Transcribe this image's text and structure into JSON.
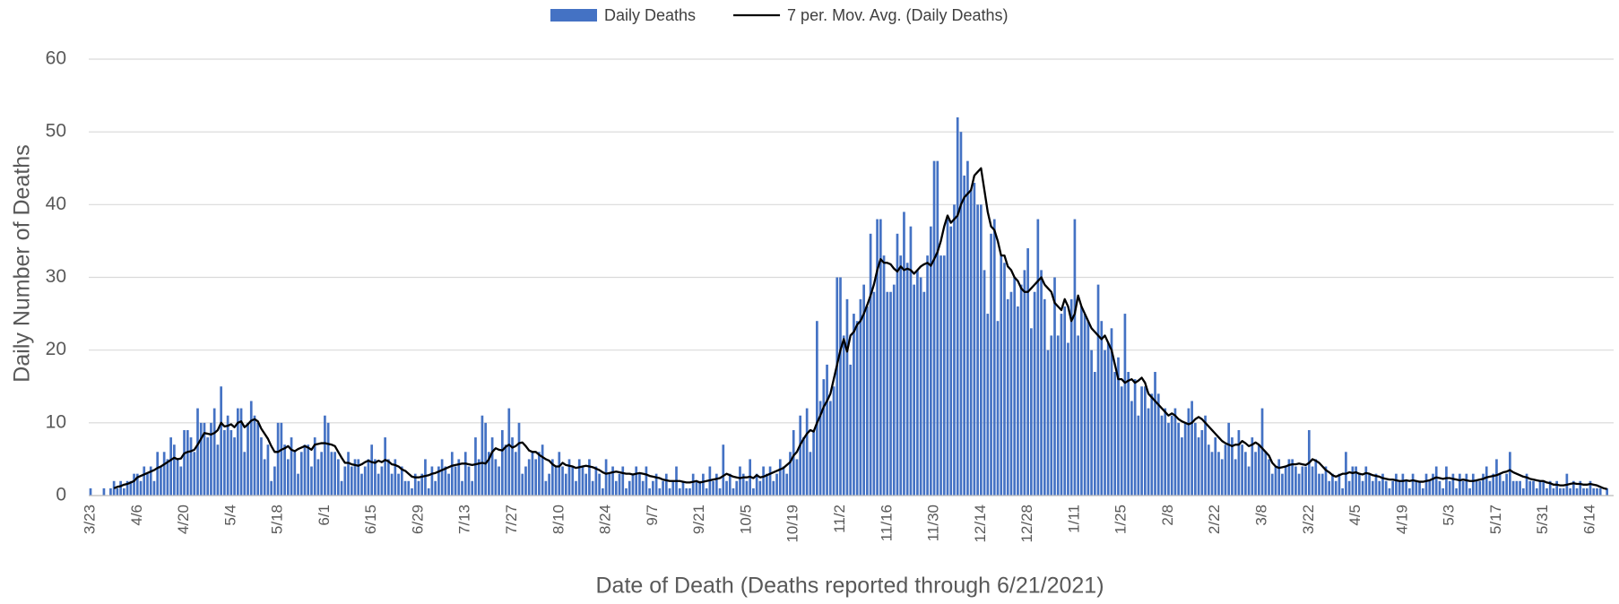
{
  "chart_data": {
    "type": "bar",
    "legend": "top",
    "grid": true,
    "y_axis_label": "Daily Number of Deaths",
    "x_axis_label": "Date of Death (Deaths reported through 6/21/2021)",
    "ylim": [
      0,
      60
    ],
    "yticks": [
      0,
      10,
      20,
      30,
      40,
      50,
      60
    ],
    "categories": [
      "3/23",
      null,
      null,
      null,
      null,
      null,
      null,
      null,
      null,
      null,
      null,
      null,
      null,
      null,
      "4/6",
      null,
      null,
      null,
      null,
      null,
      null,
      null,
      null,
      null,
      null,
      null,
      null,
      null,
      "4/20",
      null,
      null,
      null,
      null,
      null,
      null,
      null,
      null,
      null,
      null,
      null,
      null,
      null,
      "5/4",
      null,
      null,
      null,
      null,
      null,
      null,
      null,
      null,
      null,
      null,
      null,
      null,
      null,
      "5/18",
      null,
      null,
      null,
      null,
      null,
      null,
      null,
      null,
      null,
      null,
      null,
      null,
      null,
      "6/1",
      null,
      null,
      null,
      null,
      null,
      null,
      null,
      null,
      null,
      null,
      null,
      null,
      null,
      "6/15",
      null,
      null,
      null,
      null,
      null,
      null,
      null,
      null,
      null,
      null,
      null,
      null,
      null,
      "6/29",
      null,
      null,
      null,
      null,
      null,
      null,
      null,
      null,
      null,
      null,
      null,
      null,
      null,
      "7/13",
      null,
      null,
      null,
      null,
      null,
      null,
      null,
      null,
      null,
      null,
      null,
      null,
      null,
      "7/27",
      null,
      null,
      null,
      null,
      null,
      null,
      null,
      null,
      null,
      null,
      null,
      null,
      null,
      "8/10",
      null,
      null,
      null,
      null,
      null,
      null,
      null,
      null,
      null,
      null,
      null,
      null,
      null,
      "8/24",
      null,
      null,
      null,
      null,
      null,
      null,
      null,
      null,
      null,
      null,
      null,
      null,
      null,
      "9/7",
      null,
      null,
      null,
      null,
      null,
      null,
      null,
      null,
      null,
      null,
      null,
      null,
      null,
      "9/21",
      null,
      null,
      null,
      null,
      null,
      null,
      null,
      null,
      null,
      null,
      null,
      null,
      null,
      "10/5",
      null,
      null,
      null,
      null,
      null,
      null,
      null,
      null,
      null,
      null,
      null,
      null,
      null,
      "10/19",
      null,
      null,
      null,
      null,
      null,
      null,
      null,
      null,
      null,
      null,
      null,
      null,
      null,
      "11/2",
      null,
      null,
      null,
      null,
      null,
      null,
      null,
      null,
      null,
      null,
      null,
      null,
      null,
      "11/16",
      null,
      null,
      null,
      null,
      null,
      null,
      null,
      null,
      null,
      null,
      null,
      null,
      null,
      "11/30",
      null,
      null,
      null,
      null,
      null,
      null,
      null,
      null,
      null,
      null,
      null,
      null,
      null,
      "12/14",
      null,
      null,
      null,
      null,
      null,
      null,
      null,
      null,
      null,
      null,
      null,
      null,
      null,
      "12/28",
      null,
      null,
      null,
      null,
      null,
      null,
      null,
      null,
      null,
      null,
      null,
      null,
      null,
      "1/11",
      null,
      null,
      null,
      null,
      null,
      null,
      null,
      null,
      null,
      null,
      null,
      null,
      null,
      "1/25",
      null,
      null,
      null,
      null,
      null,
      null,
      null,
      null,
      null,
      null,
      null,
      null,
      null,
      "2/8",
      null,
      null,
      null,
      null,
      null,
      null,
      null,
      null,
      null,
      null,
      null,
      null,
      null,
      "2/22",
      null,
      null,
      null,
      null,
      null,
      null,
      null,
      null,
      null,
      null,
      null,
      null,
      null,
      "3/8",
      null,
      null,
      null,
      null,
      null,
      null,
      null,
      null,
      null,
      null,
      null,
      null,
      null,
      "3/22",
      null,
      null,
      null,
      null,
      null,
      null,
      null,
      null,
      null,
      null,
      null,
      null,
      null,
      "4/5",
      null,
      null,
      null,
      null,
      null,
      null,
      null,
      null,
      null,
      null,
      null,
      null,
      null,
      "4/19",
      null,
      null,
      null,
      null,
      null,
      null,
      null,
      null,
      null,
      null,
      null,
      null,
      null,
      "5/3",
      null,
      null,
      null,
      null,
      null,
      null,
      null,
      null,
      null,
      null,
      null,
      null,
      null,
      "5/17",
      null,
      null,
      null,
      null,
      null,
      null,
      null,
      null,
      null,
      null,
      null,
      null,
      null,
      "5/31",
      null,
      null,
      null,
      null,
      null,
      null,
      null,
      null,
      null,
      null,
      null,
      null,
      null,
      "6/14",
      null,
      null,
      null,
      null,
      null
    ],
    "series": [
      {
        "name": "Daily Deaths",
        "color": "#4472c4",
        "values": [
          1,
          0,
          0,
          0,
          1,
          0,
          1,
          2,
          1,
          2,
          1,
          2,
          2,
          3,
          3,
          2,
          4,
          3,
          4,
          2,
          6,
          4,
          6,
          5,
          8,
          7,
          5,
          4,
          9,
          9,
          8,
          6,
          12,
          10,
          10,
          8,
          10,
          12,
          7,
          15,
          9,
          11,
          9,
          8,
          12,
          12,
          6,
          10,
          13,
          11,
          10,
          8,
          5,
          7,
          2,
          4,
          10,
          10,
          7,
          5,
          8,
          6,
          3,
          6,
          7,
          7,
          4,
          8,
          5,
          6,
          11,
          10,
          6,
          6,
          5,
          2,
          4,
          6,
          4,
          5,
          5,
          3,
          4,
          5,
          7,
          5,
          3,
          4,
          8,
          5,
          3,
          5,
          3,
          4,
          2,
          2,
          1,
          3,
          2,
          3,
          5,
          1,
          4,
          2,
          4,
          5,
          4,
          3,
          6,
          4,
          5,
          2,
          6,
          4,
          2,
          8,
          5,
          11,
          10,
          6,
          8,
          5,
          4,
          9,
          7,
          12,
          8,
          6,
          10,
          3,
          4,
          5,
          6,
          5,
          6,
          7,
          2,
          3,
          5,
          4,
          6,
          4,
          3,
          5,
          4,
          2,
          5,
          4,
          3,
          5,
          2,
          4,
          3,
          1,
          5,
          3,
          4,
          2,
          3,
          4,
          1,
          2,
          3,
          4,
          3,
          2,
          4,
          1,
          2,
          3,
          1,
          2,
          3,
          1,
          2,
          4,
          1,
          2,
          1,
          1,
          3,
          2,
          2,
          3,
          1,
          4,
          2,
          3,
          1,
          7,
          2,
          3,
          1,
          2,
          4,
          3,
          2,
          5,
          1,
          3,
          2,
          4,
          3,
          4,
          2,
          3,
          5,
          4,
          3,
          6,
          9,
          5,
          11,
          8,
          12,
          6,
          9,
          24,
          13,
          16,
          18,
          13,
          15,
          30,
          30,
          22,
          27,
          18,
          25,
          24,
          27,
          29,
          26,
          36,
          28,
          38,
          38,
          33,
          28,
          28,
          29,
          36,
          33,
          39,
          32,
          37,
          29,
          31,
          30,
          28,
          33,
          37,
          46,
          46,
          33,
          33,
          38,
          37,
          40,
          52,
          50,
          44,
          46,
          42,
          43,
          40,
          40,
          31,
          25,
          36,
          38,
          24,
          33,
          32,
          27,
          28,
          30,
          26,
          29,
          31,
          34,
          23,
          28,
          38,
          31,
          27,
          20,
          22,
          30,
          22,
          25,
          26,
          21,
          27,
          38,
          22,
          26,
          25,
          24,
          20,
          17,
          29,
          24,
          20,
          21,
          23,
          17,
          19,
          15,
          25,
          17,
          13,
          16,
          11,
          15,
          15,
          12,
          14,
          17,
          14,
          11,
          12,
          10,
          11,
          12,
          10,
          8,
          10,
          12,
          13,
          10,
          8,
          9,
          11,
          7,
          6,
          8,
          6,
          5,
          7,
          10,
          8,
          5,
          9,
          7,
          6,
          4,
          8,
          6,
          7,
          12,
          6,
          5,
          3,
          4,
          5,
          3,
          4,
          5,
          5,
          4,
          3,
          4,
          4,
          9,
          4,
          5,
          3,
          3,
          4,
          2,
          3,
          2,
          3,
          1,
          6,
          2,
          4,
          4,
          3,
          2,
          4,
          3,
          2,
          3,
          2,
          3,
          2,
          1,
          2,
          3,
          2,
          3,
          2,
          1,
          3,
          2,
          2,
          1,
          3,
          2,
          3,
          4,
          2,
          1,
          4,
          2,
          3,
          1,
          3,
          2,
          3,
          1,
          3,
          2,
          2,
          3,
          4,
          2,
          3,
          5,
          3,
          2,
          3,
          6,
          2,
          2,
          2,
          1,
          3,
          2,
          2,
          1,
          2,
          2,
          1,
          2,
          1,
          2,
          1,
          1,
          3,
          1,
          2,
          1,
          2,
          1,
          1,
          2,
          1,
          1,
          1,
          0,
          1
        ]
      },
      {
        "name": "7 per. Mov. Avg. (Daily Deaths)",
        "color": "#000000",
        "type": "line",
        "values": [
          null,
          null,
          null,
          null,
          null,
          null,
          null,
          1.0,
          1.2,
          1.3,
          1.5,
          1.6,
          1.8,
          2.0,
          2.5,
          2.7,
          2.9,
          3.1,
          3.3,
          3.5,
          3.8,
          4.0,
          4.3,
          4.6,
          4.9,
          5.2,
          5.0,
          5.1,
          5.8,
          6.0,
          6.1,
          6.3,
          7.0,
          7.8,
          8.6,
          8.5,
          8.4,
          8.6,
          9.0,
          10.0,
          9.5,
          9.6,
          9.8,
          9.4,
          10.0,
          10.2,
          9.4,
          9.8,
          10.3,
          10.5,
          10.2,
          9.2,
          8.5,
          7.8,
          6.8,
          6.0,
          6.0,
          6.3,
          6.5,
          6.8,
          6.3,
          6.1,
          6.4,
          6.6,
          6.8,
          6.6,
          6.3,
          7.0,
          7.1,
          7.2,
          7.2,
          7.1,
          7.0,
          6.8,
          6.0,
          5.2,
          4.5,
          4.5,
          4.3,
          4.2,
          4.1,
          4.3,
          4.6,
          4.8,
          4.6,
          4.5,
          4.8,
          4.6,
          4.9,
          4.7,
          4.3,
          4.2,
          4.0,
          3.6,
          3.4,
          3.0,
          2.6,
          2.5,
          2.5,
          2.6,
          2.7,
          2.8,
          3.0,
          3.1,
          3.3,
          3.5,
          3.7,
          3.9,
          4.1,
          4.2,
          4.3,
          4.4,
          4.4,
          4.3,
          4.2,
          4.3,
          4.4,
          4.5,
          4.4,
          5.0,
          6.0,
          6.5,
          6.3,
          6.2,
          6.7,
          7.0,
          6.6,
          6.8,
          7.2,
          7.3,
          6.8,
          6.2,
          6.0,
          6.0,
          5.6,
          5.3,
          5.0,
          4.8,
          4.3,
          4.0,
          4.0,
          4.5,
          4.2,
          4.1,
          4.0,
          3.8,
          3.9,
          4.0,
          4.1,
          4.0,
          3.9,
          3.7,
          3.5,
          3.2,
          3.0,
          3.1,
          3.2,
          3.3,
          3.2,
          3.1,
          3.0,
          3.0,
          2.9,
          3.0,
          3.1,
          3.0,
          2.9,
          2.7,
          2.6,
          2.5,
          2.4,
          2.2,
          2.1,
          2.0,
          2.0,
          2.0,
          2.0,
          1.9,
          1.8,
          1.8,
          1.9,
          2.0,
          1.8,
          1.9,
          2.0,
          2.1,
          2.2,
          2.3,
          2.4,
          2.7,
          3.0,
          2.8,
          2.6,
          2.5,
          2.4,
          2.5,
          2.5,
          2.6,
          2.4,
          2.8,
          2.5,
          2.6,
          2.8,
          3.0,
          3.2,
          3.4,
          3.6,
          3.8,
          4.2,
          4.6,
          5.5,
          6.0,
          7.0,
          7.8,
          8.5,
          9.0,
          8.8,
          10.0,
          11.0,
          12.2,
          13.0,
          14.0,
          16.0,
          18.0,
          20.0,
          21.5,
          19.8,
          22.0,
          22.5,
          23.5,
          24.0,
          25.0,
          26.2,
          27.5,
          29.0,
          31.0,
          32.5,
          32.0,
          32.0,
          31.8,
          31.2,
          30.8,
          31.5,
          31.0,
          31.2,
          31.0,
          30.5,
          31.0,
          31.5,
          31.8,
          32.0,
          31.6,
          32.5,
          33.5,
          35.0,
          37.0,
          38.5,
          37.5,
          38.0,
          38.5,
          40.0,
          41.0,
          41.5,
          42.0,
          44.0,
          44.5,
          45.0,
          42.0,
          39.0,
          37.0,
          36.5,
          35.0,
          33.0,
          33.0,
          31.5,
          31.0,
          30.0,
          29.5,
          28.5,
          28.0,
          28.0,
          28.5,
          29.0,
          29.5,
          30.0,
          29.0,
          28.5,
          28.0,
          26.5,
          26.0,
          25.5,
          27.0,
          26.0,
          24.0,
          25.0,
          27.5,
          26.0,
          25.0,
          24.0,
          23.0,
          22.5,
          22.0,
          21.5,
          22.0,
          21.0,
          20.0,
          18.0,
          16.0,
          16.0,
          15.5,
          15.8,
          16.0,
          15.5,
          15.8,
          16.2,
          15.5,
          14.0,
          13.5,
          13.0,
          12.5,
          12.0,
          11.5,
          11.0,
          11.3,
          11.0,
          10.5,
          10.2,
          10.0,
          9.8,
          10.0,
          10.5,
          10.8,
          10.5,
          10.0,
          9.5,
          9.0,
          8.5,
          8.0,
          7.5,
          7.2,
          7.0,
          6.8,
          7.0,
          7.0,
          7.5,
          7.2,
          6.8,
          7.0,
          7.3,
          7.0,
          6.5,
          6.0,
          5.5,
          4.5,
          4.0,
          3.8,
          3.9,
          4.0,
          4.2,
          4.3,
          4.3,
          4.4,
          4.3,
          4.2,
          4.5,
          5.0,
          4.8,
          4.5,
          4.0,
          3.5,
          3.2,
          2.8,
          2.6,
          2.8,
          3.0,
          3.0,
          3.2,
          3.1,
          3.2,
          3.0,
          2.9,
          3.1,
          3.0,
          2.8,
          2.7,
          2.6,
          2.4,
          2.3,
          2.2,
          2.2,
          2.1,
          2.0,
          2.0,
          2.1,
          2.0,
          2.1,
          2.0,
          1.9,
          1.9,
          2.0,
          2.1,
          2.3,
          2.5,
          2.4,
          2.3,
          2.4,
          2.4,
          2.3,
          2.2,
          2.1,
          2.2,
          2.1,
          2.0,
          2.0,
          2.1,
          2.2,
          2.3,
          2.5,
          2.6,
          2.7,
          2.8,
          3.0,
          3.2,
          3.3,
          3.5,
          3.2,
          3.0,
          2.8,
          2.6,
          2.5,
          2.3,
          2.2,
          2.1,
          2.0,
          2.0,
          1.8,
          1.7,
          1.5,
          1.5,
          1.4,
          1.4,
          1.5,
          1.6,
          1.7,
          1.6,
          1.6,
          1.5,
          1.5,
          1.6,
          1.5,
          1.4,
          1.2,
          1.0,
          0.9
        ]
      }
    ]
  }
}
